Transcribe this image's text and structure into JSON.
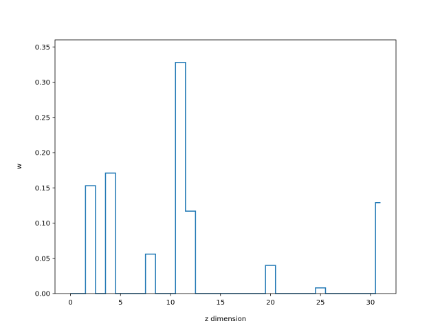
{
  "chart_data": {
    "type": "line",
    "step": "mid",
    "title": "",
    "xlabel": "z dimension",
    "ylabel": "w",
    "xlim": [
      -1.55,
      32.55
    ],
    "ylim": [
      0,
      0.36
    ],
    "xticks": [
      0,
      5,
      10,
      15,
      20,
      25,
      30
    ],
    "yticks": [
      0.0,
      0.05,
      0.1,
      0.15,
      0.2,
      0.25,
      0.3,
      0.35
    ],
    "grid": false,
    "legend": "none",
    "color": "#1f77b4",
    "x": [
      0,
      1,
      2,
      3,
      4,
      5,
      6,
      7,
      8,
      9,
      10,
      11,
      12,
      13,
      14,
      15,
      16,
      17,
      18,
      19,
      20,
      21,
      22,
      23,
      24,
      25,
      26,
      27,
      28,
      29,
      30,
      31
    ],
    "values": [
      0,
      0,
      0.153,
      0,
      0.171,
      0,
      0,
      0,
      0.056,
      0,
      0,
      0.328,
      0.117,
      0,
      0,
      0,
      0,
      0,
      0,
      0,
      0.04,
      0,
      0,
      0,
      0,
      0.008,
      0,
      0,
      0,
      0,
      0,
      0.129
    ]
  }
}
